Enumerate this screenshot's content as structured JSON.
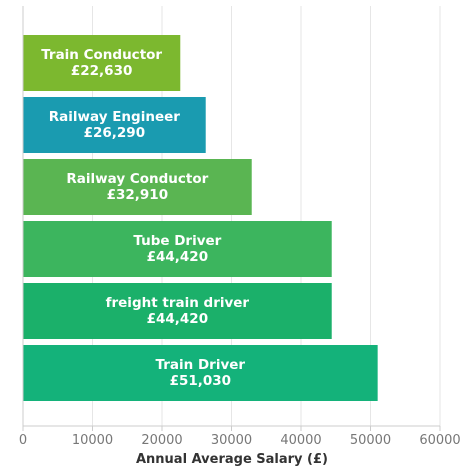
{
  "chart_data": {
    "type": "bar",
    "orientation": "horizontal",
    "categories": [
      "Train Conductor",
      "Railway Engineer",
      "Railway Conductor",
      "Tube Driver",
      "freight train driver",
      "Train Driver"
    ],
    "values": [
      22630,
      26290,
      32910,
      44420,
      44420,
      51030
    ],
    "value_labels": [
      "£22,630",
      "£26,290",
      "£32,910",
      "£44,420",
      "£44,420",
      "£51,030"
    ],
    "colors": [
      "#7cb82f",
      "#1a9bb0",
      "#5ab552",
      "#3cb55e",
      "#1bb06a",
      "#14b27a"
    ],
    "xlabel": "Annual Average Salary (£)",
    "ylabel": "",
    "xlim": [
      0,
      60000
    ],
    "xticks": [
      0,
      10000,
      20000,
      30000,
      40000,
      50000,
      60000
    ],
    "xtick_labels": [
      "0",
      "10000",
      "20000",
      "30000",
      "40000",
      "50000",
      "60000"
    ],
    "grid": true,
    "label_text_color": "#ffffff",
    "grid_color": "#e6e6e6",
    "axis_color": "#cccccc"
  }
}
